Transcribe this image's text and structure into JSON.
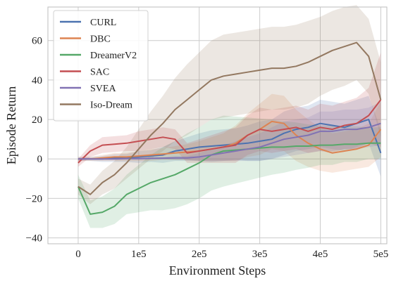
{
  "chart_data": {
    "type": "line",
    "title": "",
    "xlabel": "Environment Steps",
    "ylabel": "Episode Return",
    "xlim": [
      -50000,
      510000
    ],
    "ylim": [
      -43,
      77
    ],
    "grid": true,
    "legend_position": "top-left",
    "x_ticks": [
      {
        "value": 0,
        "label": "0"
      },
      {
        "value": 100000,
        "label": "1e5"
      },
      {
        "value": 200000,
        "label": "2e5"
      },
      {
        "value": 300000,
        "label": "3e5"
      },
      {
        "value": 400000,
        "label": "4e5"
      },
      {
        "value": 500000,
        "label": "5e5"
      }
    ],
    "y_ticks": [
      {
        "value": -40,
        "label": "−40"
      },
      {
        "value": -20,
        "label": "−20"
      },
      {
        "value": 0,
        "label": "0"
      },
      {
        "value": 20,
        "label": "20"
      },
      {
        "value": 40,
        "label": "40"
      },
      {
        "value": 60,
        "label": "60"
      }
    ],
    "x": [
      0,
      20000,
      40000,
      60000,
      80000,
      100000,
      120000,
      140000,
      160000,
      180000,
      200000,
      220000,
      240000,
      260000,
      280000,
      300000,
      320000,
      340000,
      360000,
      380000,
      400000,
      420000,
      440000,
      460000,
      480000,
      500000
    ],
    "series": [
      {
        "name": "CURL",
        "color": "#4c72b0",
        "values": [
          0,
          0,
          0,
          0.5,
          0.5,
          1,
          1.5,
          2,
          4,
          5,
          6,
          6.5,
          7,
          7.5,
          8,
          9,
          10,
          13,
          15,
          16,
          18,
          17,
          16,
          18,
          20,
          3
        ],
        "band": [
          1,
          1,
          1.5,
          2,
          2,
          3,
          3,
          4,
          5,
          6,
          7,
          8,
          8,
          8,
          9,
          10,
          10,
          11,
          11,
          11,
          12,
          12,
          12,
          12,
          12,
          12
        ]
      },
      {
        "name": "DBC",
        "color": "#dd8452",
        "values": [
          0,
          0,
          0.5,
          1,
          1,
          1.5,
          2,
          2.5,
          3,
          3.5,
          4,
          5,
          6,
          8,
          12,
          15,
          19,
          18,
          12,
          8,
          5,
          3,
          4,
          5,
          7,
          15
        ],
        "band": [
          1,
          1,
          1.5,
          2,
          2,
          2.5,
          3,
          3,
          3.5,
          4,
          5,
          6,
          7,
          9,
          11,
          13,
          14,
          14,
          13,
          12,
          11,
          10,
          10,
          10,
          11,
          14
        ]
      },
      {
        "name": "DreamerV2",
        "color": "#55a868",
        "values": [
          -14,
          -28,
          -27,
          -24,
          -18,
          -15,
          -12,
          -10,
          -8,
          -5,
          -2,
          2,
          4,
          4.5,
          5,
          5.5,
          6,
          6,
          6.5,
          6.5,
          7,
          7,
          7.5,
          7.5,
          8,
          8
        ],
        "band": [
          6,
          7,
          8,
          9,
          10,
          12,
          14,
          16,
          17,
          18,
          18,
          18,
          18,
          17,
          16,
          15,
          14,
          13,
          12,
          11,
          10,
          10,
          9,
          9,
          8,
          8
        ]
      },
      {
        "name": "SAC",
        "color": "#c44e52",
        "values": [
          -2,
          4,
          7,
          7.5,
          8,
          9,
          10,
          11,
          10,
          3,
          4,
          5,
          6,
          7,
          12,
          15,
          14,
          15,
          16,
          14,
          16,
          15,
          17,
          18,
          22,
          30
        ],
        "band": [
          2,
          3,
          4,
          4,
          4,
          5,
          5,
          5,
          5,
          5,
          6,
          7,
          8,
          9,
          10,
          11,
          11,
          11,
          11,
          11,
          12,
          12,
          12,
          13,
          14,
          24
        ]
      },
      {
        "name": "SVEA",
        "color": "#8172b3",
        "values": [
          0,
          0,
          0,
          0,
          0.2,
          0.2,
          0.3,
          0.4,
          0.5,
          0.5,
          1,
          2,
          3,
          4,
          5,
          6,
          8,
          10,
          11,
          12,
          14,
          14,
          15,
          15,
          16,
          18
        ],
        "band": [
          0.5,
          0.5,
          0.5,
          0.5,
          0.5,
          0.5,
          0.5,
          0.5,
          1,
          1,
          2,
          3,
          4,
          5,
          6,
          7,
          8,
          9,
          9,
          9,
          10,
          10,
          10,
          10,
          10,
          11
        ]
      },
      {
        "name": "Iso-Dream",
        "color": "#937860",
        "values": [
          -14,
          -18,
          -12,
          -8,
          -2,
          5,
          12,
          18,
          25,
          30,
          35,
          40,
          42,
          43,
          44,
          45,
          46,
          46,
          47,
          49,
          52,
          55,
          57,
          59,
          52,
          30
        ],
        "band": [
          4,
          5,
          6,
          7,
          8,
          10,
          12,
          14,
          16,
          18,
          19,
          20,
          21,
          21,
          21,
          21,
          21,
          21,
          21,
          21,
          20,
          20,
          20,
          19,
          19,
          19
        ]
      }
    ]
  }
}
